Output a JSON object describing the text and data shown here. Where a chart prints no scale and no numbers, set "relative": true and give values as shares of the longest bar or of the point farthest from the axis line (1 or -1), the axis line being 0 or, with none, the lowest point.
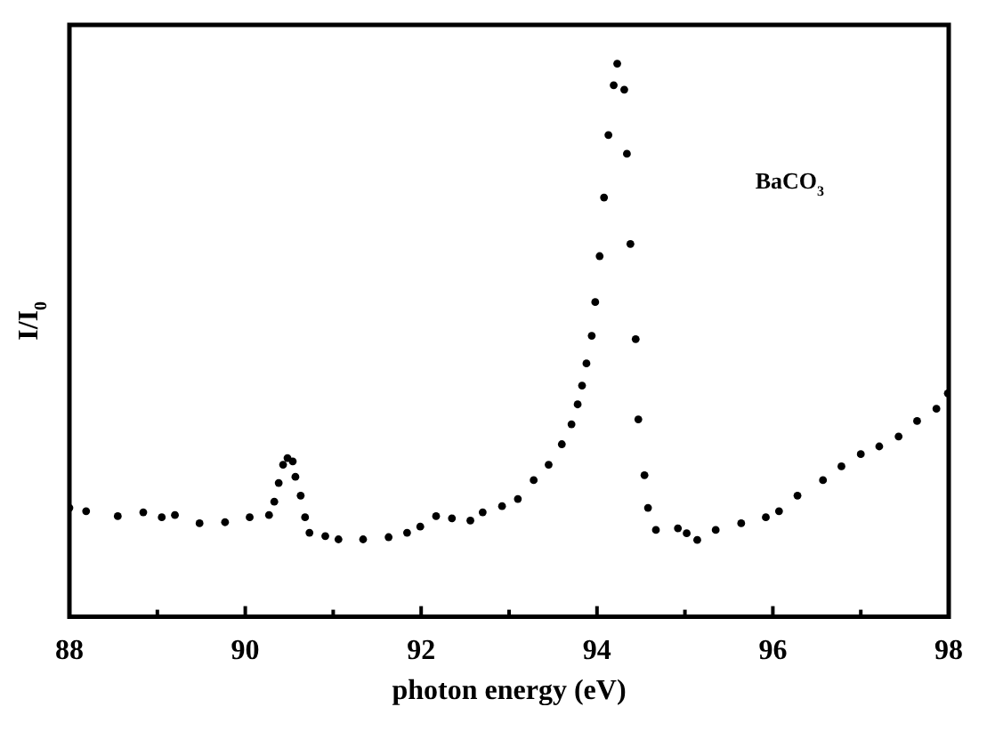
{
  "chart_data": {
    "type": "scatter",
    "relative": true,
    "xlabel": "photon energy (eV)",
    "ylabel": "I/I$_{0}$",
    "annotations": [
      "BaCO$_{3}$"
    ],
    "marker": "circle",
    "grid": false,
    "legend": false,
    "xlim": [
      88,
      98
    ],
    "xticks": [
      88,
      {
        "value": 89,
        "label": null
      },
      90,
      {
        "value": 91,
        "label": null
      },
      92,
      {
        "value": 93,
        "label": null
      },
      94,
      {
        "value": 95,
        "label": null
      },
      96,
      {
        "value": 97,
        "label": null
      },
      98
    ],
    "series": [
      {
        "color": "#000000",
        "x": [
          88.0,
          88.19,
          88.55,
          88.84,
          89.05,
          89.2,
          89.48,
          89.77,
          90.05,
          90.27,
          90.33,
          90.38,
          90.43,
          90.48,
          90.54,
          90.57,
          90.63,
          90.68,
          90.73,
          90.91,
          91.06,
          91.34,
          91.63,
          91.84,
          91.99,
          92.17,
          92.35,
          92.56,
          92.7,
          92.92,
          93.1,
          93.28,
          93.45,
          93.6,
          93.71,
          93.78,
          93.83,
          93.88,
          93.94,
          93.98,
          94.03,
          94.08,
          94.13,
          94.19,
          94.23,
          94.31,
          94.34,
          94.38,
          94.44,
          94.47,
          94.54,
          94.58,
          94.67,
          94.92,
          95.02,
          95.14,
          95.35,
          95.64,
          95.92,
          96.07,
          96.28,
          96.57,
          96.78,
          97.0,
          97.21,
          97.43,
          97.64,
          97.86,
          97.99
        ],
        "values": [
          0.197,
          0.191,
          0.182,
          0.189,
          0.18,
          0.184,
          0.169,
          0.171,
          0.18,
          0.184,
          0.208,
          0.242,
          0.275,
          0.287,
          0.281,
          0.253,
          0.219,
          0.18,
          0.152,
          0.146,
          0.14,
          0.14,
          0.144,
          0.152,
          0.163,
          0.182,
          0.178,
          0.174,
          0.189,
          0.2,
          0.213,
          0.247,
          0.275,
          0.312,
          0.348,
          0.384,
          0.418,
          0.458,
          0.508,
          0.569,
          0.652,
          0.758,
          0.871,
          0.961,
          1,
          0.953,
          0.837,
          0.674,
          0.502,
          0.357,
          0.256,
          0.197,
          0.157,
          0.16,
          0.151,
          0.139,
          0.157,
          0.169,
          0.18,
          0.191,
          0.219,
          0.247,
          0.272,
          0.294,
          0.308,
          0.326,
          0.354,
          0.376,
          0.404
        ]
      }
    ]
  }
}
